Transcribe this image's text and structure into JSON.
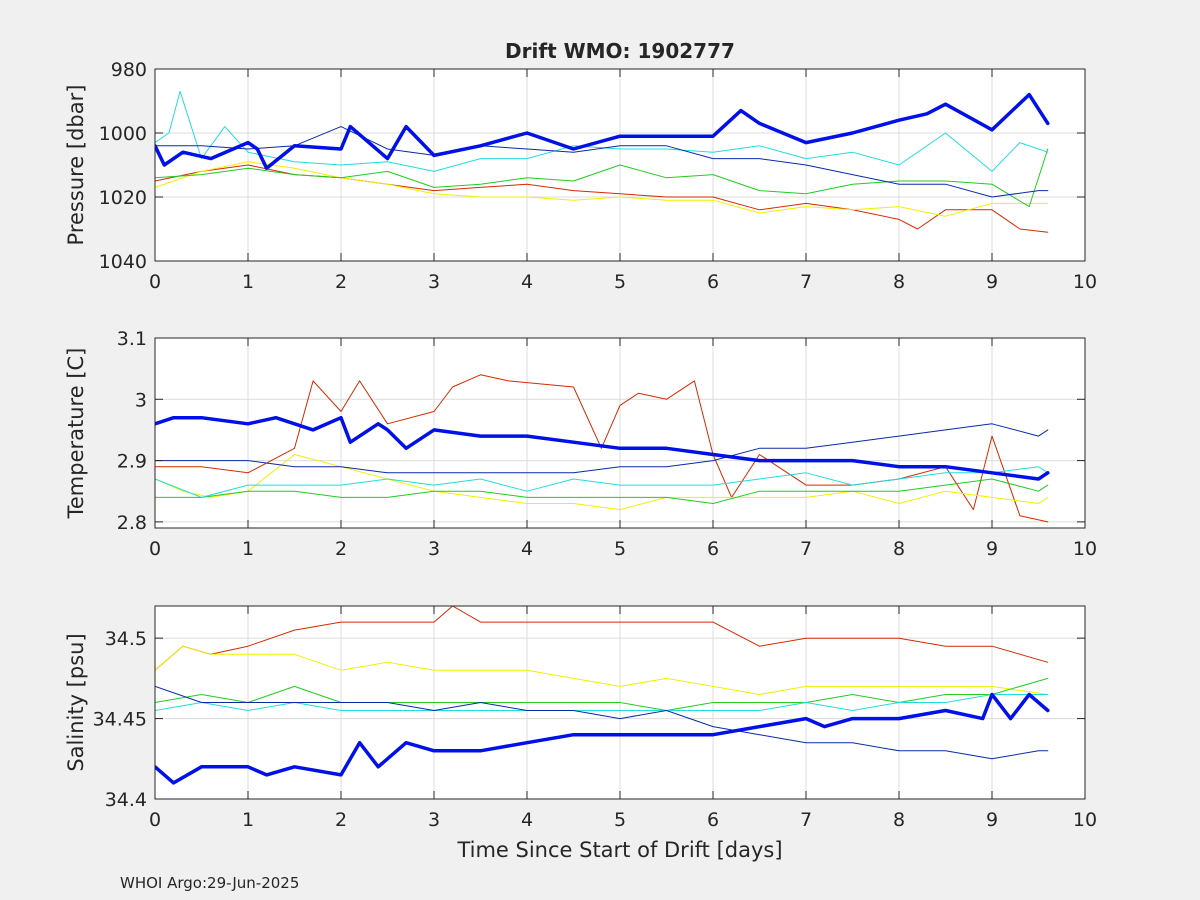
{
  "title": "Drift WMO: 1902777",
  "footer": "WHOI Argo:29-Jun-2025",
  "colors": {
    "red": "#d62a00",
    "yellow": "#f0f000",
    "green": "#22cc22",
    "cyan": "#22dddd",
    "navy": "#0a2aa8",
    "blue": "#0010e8"
  },
  "chart_data": [
    {
      "type": "line",
      "title": "Drift WMO: 1902777",
      "xlabel": "",
      "ylabel": "Pressure [dbar]",
      "xlim": [
        0,
        10
      ],
      "ylim": [
        980,
        1040
      ],
      "y_reversed": true,
      "xticks": [
        0,
        1,
        2,
        3,
        4,
        5,
        6,
        7,
        8,
        9,
        10
      ],
      "yticks": [
        980,
        1000,
        1020,
        1040
      ],
      "grid": true,
      "series": [
        {
          "color": "red",
          "width": 1,
          "x": [
            0,
            0.5,
            1,
            1.5,
            2,
            2.5,
            3,
            3.5,
            4,
            4.5,
            5,
            5.5,
            6,
            6.5,
            7,
            7.5,
            8,
            8.2,
            8.5,
            9,
            9.3,
            9.6
          ],
          "values": [
            1015,
            1012,
            1010,
            1013,
            1014,
            1016,
            1018,
            1017,
            1016,
            1018,
            1019,
            1020,
            1020,
            1024,
            1022,
            1024,
            1027,
            1030,
            1024,
            1024,
            1030,
            1031
          ]
        },
        {
          "color": "yellow",
          "width": 1,
          "x": [
            0,
            0.5,
            1,
            1.5,
            2,
            2.5,
            3,
            3.5,
            4,
            4.5,
            5,
            5.5,
            6,
            6.5,
            7,
            7.5,
            8,
            8.5,
            9,
            9.5,
            9.6
          ],
          "values": [
            1017,
            1012,
            1009,
            1011,
            1014,
            1016,
            1019,
            1020,
            1020,
            1021,
            1020,
            1021,
            1021,
            1025,
            1023,
            1024,
            1023,
            1026,
            1022,
            1022,
            1022
          ]
        },
        {
          "color": "green",
          "width": 1,
          "x": [
            0,
            0.5,
            1,
            1.5,
            2,
            2.5,
            3,
            3.5,
            4,
            4.5,
            5,
            5.5,
            6,
            6.5,
            7,
            7.5,
            8,
            8.5,
            9,
            9.4,
            9.6
          ],
          "values": [
            1014,
            1013,
            1011,
            1013,
            1014,
            1012,
            1017,
            1016,
            1014,
            1015,
            1010,
            1014,
            1013,
            1018,
            1019,
            1016,
            1015,
            1015,
            1016,
            1023,
            1005
          ]
        },
        {
          "color": "cyan",
          "width": 1,
          "x": [
            0,
            0.15,
            0.27,
            0.5,
            0.75,
            1,
            1.5,
            2,
            2.5,
            3,
            3.5,
            4,
            4.5,
            5,
            5.5,
            6,
            6.5,
            7,
            7.5,
            8,
            8.5,
            9,
            9.3,
            9.6
          ],
          "values": [
            1003,
            1000,
            987,
            1008,
            998,
            1006,
            1009,
            1010,
            1009,
            1012,
            1008,
            1008,
            1004,
            1005,
            1005,
            1006,
            1004,
            1008,
            1006,
            1010,
            1000,
            1012,
            1003,
            1006
          ]
        },
        {
          "color": "navy",
          "width": 1,
          "x": [
            0,
            0.5,
            1,
            1.5,
            2,
            2.5,
            3,
            3.5,
            4,
            4.5,
            5,
            5.5,
            6,
            6.5,
            7,
            7.5,
            8,
            8.5,
            9,
            9.5,
            9.6
          ],
          "values": [
            1004,
            1004,
            1005,
            1004,
            998,
            1005,
            1007,
            1004,
            1005,
            1006,
            1004,
            1004,
            1008,
            1008,
            1010,
            1013,
            1016,
            1016,
            1020,
            1018,
            1018
          ]
        },
        {
          "color": "blue",
          "width": 3.5,
          "x": [
            0,
            0.1,
            0.3,
            0.6,
            1,
            1.1,
            1.2,
            1.5,
            2,
            2.1,
            2.5,
            2.7,
            3,
            3.5,
            4,
            4.5,
            5,
            5.5,
            6,
            6.3,
            6.5,
            7,
            7.5,
            8,
            8.3,
            8.5,
            9,
            9.4,
            9.6
          ],
          "values": [
            1004,
            1010,
            1006,
            1008,
            1003,
            1005,
            1011,
            1004,
            1005,
            998,
            1008,
            998,
            1007,
            1004,
            1000,
            1005,
            1001,
            1001,
            1001,
            993,
            997,
            1003,
            1000,
            996,
            994,
            991,
            999,
            988,
            997
          ]
        }
      ]
    },
    {
      "type": "line",
      "xlabel": "",
      "ylabel": "Temperature [C]",
      "xlim": [
        0,
        10
      ],
      "ylim": [
        2.79,
        3.1
      ],
      "xticks": [
        0,
        1,
        2,
        3,
        4,
        5,
        6,
        7,
        8,
        9,
        10
      ],
      "yticks": [
        2.8,
        2.9,
        3,
        3.1
      ],
      "grid": true,
      "series": [
        {
          "color": "red",
          "width": 1,
          "x": [
            0,
            0.5,
            1,
            1.5,
            1.7,
            2,
            2.2,
            2.5,
            3,
            3.2,
            3.5,
            3.8,
            4.5,
            4.8,
            5,
            5.2,
            5.5,
            5.8,
            6,
            6.2,
            6.5,
            7,
            7.5,
            8,
            8.5,
            8.8,
            9,
            9.3,
            9.6
          ],
          "values": [
            2.89,
            2.89,
            2.88,
            2.92,
            3.03,
            2.98,
            3.03,
            2.96,
            2.98,
            3.02,
            3.04,
            3.03,
            3.02,
            2.92,
            2.99,
            3.01,
            3.0,
            3.03,
            2.91,
            2.84,
            2.91,
            2.86,
            2.86,
            2.87,
            2.89,
            2.82,
            2.94,
            2.81,
            2.8
          ]
        },
        {
          "color": "yellow",
          "width": 1,
          "x": [
            0,
            0.3,
            0.6,
            1,
            1.5,
            2,
            2.5,
            3,
            3.5,
            4,
            4.5,
            5,
            5.5,
            6,
            6.5,
            7,
            7.5,
            8,
            8.5,
            9,
            9.5,
            9.6
          ],
          "values": [
            2.87,
            2.85,
            2.84,
            2.85,
            2.91,
            2.89,
            2.87,
            2.85,
            2.84,
            2.83,
            2.83,
            2.82,
            2.84,
            2.84,
            2.84,
            2.84,
            2.85,
            2.83,
            2.85,
            2.84,
            2.83,
            2.84
          ]
        },
        {
          "color": "green",
          "width": 1,
          "x": [
            0,
            0.5,
            1,
            1.5,
            2,
            2.5,
            3,
            3.5,
            4,
            4.5,
            5,
            5.5,
            6,
            6.5,
            7,
            7.5,
            8,
            8.5,
            9,
            9.5,
            9.6
          ],
          "values": [
            2.84,
            2.84,
            2.85,
            2.85,
            2.84,
            2.84,
            2.85,
            2.85,
            2.84,
            2.84,
            2.84,
            2.84,
            2.83,
            2.85,
            2.85,
            2.85,
            2.85,
            2.86,
            2.87,
            2.85,
            2.86
          ]
        },
        {
          "color": "cyan",
          "width": 1,
          "x": [
            0,
            0.5,
            1,
            1.5,
            2,
            2.5,
            3,
            3.5,
            4,
            4.5,
            5,
            5.5,
            6,
            6.5,
            7,
            7.5,
            8,
            8.5,
            9,
            9.5,
            9.6
          ],
          "values": [
            2.87,
            2.84,
            2.86,
            2.86,
            2.86,
            2.87,
            2.86,
            2.87,
            2.85,
            2.87,
            2.86,
            2.86,
            2.86,
            2.87,
            2.88,
            2.86,
            2.87,
            2.88,
            2.88,
            2.89,
            2.88
          ]
        },
        {
          "color": "navy",
          "width": 1,
          "x": [
            0,
            0.5,
            1,
            1.5,
            2,
            2.5,
            3,
            3.5,
            4,
            4.5,
            5,
            5.5,
            6,
            6.5,
            7,
            7.5,
            8,
            8.5,
            9,
            9.5,
            9.6
          ],
          "values": [
            2.9,
            2.9,
            2.9,
            2.89,
            2.89,
            2.88,
            2.88,
            2.88,
            2.88,
            2.88,
            2.89,
            2.89,
            2.9,
            2.92,
            2.92,
            2.93,
            2.94,
            2.95,
            2.96,
            2.94,
            2.95
          ]
        },
        {
          "color": "blue",
          "width": 3.5,
          "x": [
            0,
            0.2,
            0.5,
            1,
            1.3,
            1.7,
            2,
            2.1,
            2.4,
            2.5,
            2.7,
            3,
            3.5,
            4,
            4.5,
            5,
            5.5,
            6,
            6.5,
            7,
            7.5,
            8,
            8.5,
            9,
            9.5,
            9.6
          ],
          "values": [
            2.96,
            2.97,
            2.97,
            2.96,
            2.97,
            2.95,
            2.97,
            2.93,
            2.96,
            2.95,
            2.92,
            2.95,
            2.94,
            2.94,
            2.93,
            2.92,
            2.92,
            2.91,
            2.9,
            2.9,
            2.9,
            2.89,
            2.89,
            2.88,
            2.87,
            2.88
          ]
        }
      ]
    },
    {
      "type": "line",
      "xlabel": "Time Since Start of Drift [days]",
      "ylabel": "Salinity [psu]",
      "xlim": [
        0,
        10
      ],
      "ylim": [
        34.4,
        34.52
      ],
      "xticks": [
        0,
        1,
        2,
        3,
        4,
        5,
        6,
        7,
        8,
        9,
        10
      ],
      "yticks": [
        34.4,
        34.45,
        34.5
      ],
      "ytick_labels": [
        "34.4",
        "34.45",
        "34.5"
      ],
      "grid": true,
      "series": [
        {
          "color": "red",
          "width": 1,
          "x": [
            0,
            0.3,
            0.6,
            1,
            1.5,
            2,
            2.5,
            3,
            3.2,
            3.5,
            4,
            4.5,
            5,
            5.5,
            6,
            6.5,
            7,
            7.5,
            8,
            8.5,
            9,
            9.6
          ],
          "values": [
            34.48,
            34.495,
            34.49,
            34.495,
            34.505,
            34.51,
            34.51,
            34.51,
            34.52,
            34.51,
            34.51,
            34.51,
            34.51,
            34.51,
            34.51,
            34.495,
            34.5,
            34.5,
            34.5,
            34.495,
            34.495,
            34.485
          ]
        },
        {
          "color": "yellow",
          "width": 1,
          "x": [
            0,
            0.3,
            0.6,
            1,
            1.5,
            2,
            2.5,
            3,
            3.5,
            4,
            4.5,
            5,
            5.5,
            6,
            6.5,
            7,
            7.5,
            8,
            8.5,
            9,
            9.6
          ],
          "values": [
            34.48,
            34.495,
            34.49,
            34.49,
            34.49,
            34.48,
            34.485,
            34.48,
            34.48,
            34.48,
            34.475,
            34.47,
            34.475,
            34.47,
            34.465,
            34.47,
            34.47,
            34.47,
            34.47,
            34.47,
            34.465
          ]
        },
        {
          "color": "green",
          "width": 1,
          "x": [
            0,
            0.5,
            1,
            1.5,
            2,
            2.5,
            3,
            3.5,
            4,
            4.5,
            5,
            5.5,
            6,
            6.5,
            7,
            7.5,
            8,
            8.5,
            9,
            9.6
          ],
          "values": [
            34.46,
            34.465,
            34.46,
            34.47,
            34.46,
            34.46,
            34.46,
            34.46,
            34.46,
            34.46,
            34.46,
            34.455,
            34.46,
            34.46,
            34.46,
            34.465,
            34.46,
            34.465,
            34.465,
            34.475
          ]
        },
        {
          "color": "cyan",
          "width": 1,
          "x": [
            0,
            0.5,
            1,
            1.5,
            2,
            2.5,
            3,
            3.5,
            4,
            4.5,
            5,
            5.5,
            6,
            6.5,
            7,
            7.5,
            8,
            8.5,
            9,
            9.6
          ],
          "values": [
            34.455,
            34.46,
            34.455,
            34.46,
            34.455,
            34.455,
            34.455,
            34.455,
            34.455,
            34.455,
            34.455,
            34.455,
            34.455,
            34.455,
            34.46,
            34.455,
            34.46,
            34.46,
            34.465,
            34.465
          ]
        },
        {
          "color": "navy",
          "width": 1,
          "x": [
            0,
            0.5,
            1,
            1.5,
            2,
            2.5,
            3,
            3.5,
            4,
            4.5,
            5,
            5.5,
            6,
            6.5,
            7,
            7.5,
            8,
            8.5,
            9,
            9.5,
            9.6
          ],
          "values": [
            34.47,
            34.46,
            34.46,
            34.46,
            34.46,
            34.46,
            34.455,
            34.46,
            34.455,
            34.455,
            34.45,
            34.455,
            34.445,
            34.44,
            34.435,
            34.435,
            34.43,
            34.43,
            34.425,
            34.43,
            34.43
          ]
        },
        {
          "color": "blue",
          "width": 3.5,
          "x": [
            0,
            0.2,
            0.5,
            1,
            1.2,
            1.5,
            2,
            2.2,
            2.4,
            2.5,
            2.7,
            3,
            3.5,
            4,
            4.5,
            5,
            5.5,
            6,
            6.5,
            7,
            7.2,
            7.5,
            8,
            8.5,
            8.9,
            9,
            9.2,
            9.4,
            9.6
          ],
          "values": [
            34.42,
            34.41,
            34.42,
            34.42,
            34.415,
            34.42,
            34.415,
            34.435,
            34.42,
            34.425,
            34.435,
            34.43,
            34.43,
            34.435,
            34.44,
            34.44,
            34.44,
            34.44,
            34.445,
            34.45,
            34.445,
            34.45,
            34.45,
            34.455,
            34.45,
            34.465,
            34.45,
            34.465,
            34.455
          ]
        }
      ]
    }
  ]
}
